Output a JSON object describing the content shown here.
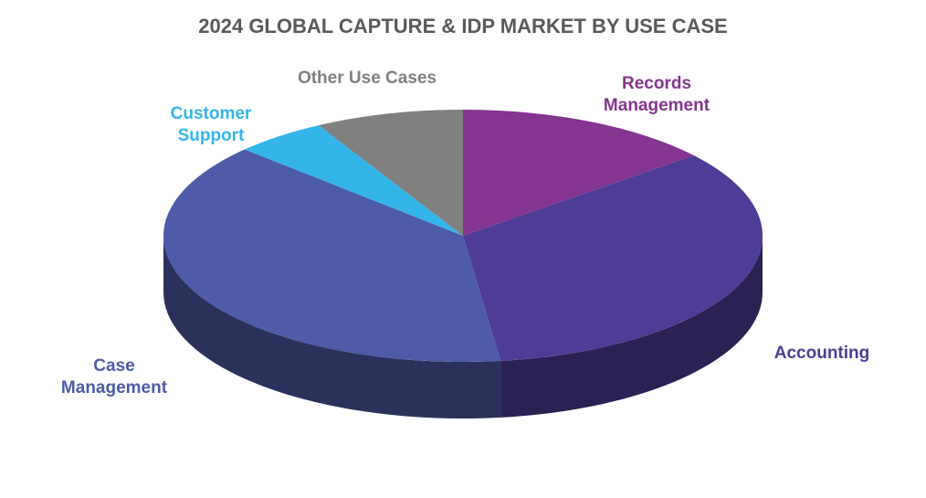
{
  "chart_data": {
    "type": "pie3d",
    "title": "2024 GLOBAL CAPTURE & IDP MARKET BY USE CASE",
    "categories": [
      "Records Management",
      "Accounting",
      "Case Management",
      "Customer Support",
      "Other Use Cases"
    ],
    "values": [
      14,
      34,
      39,
      5,
      8
    ],
    "colors": [
      "#84358f",
      "#4f3c96",
      "#4d5ba8",
      "#33b5ea",
      "#808080"
    ]
  }
}
